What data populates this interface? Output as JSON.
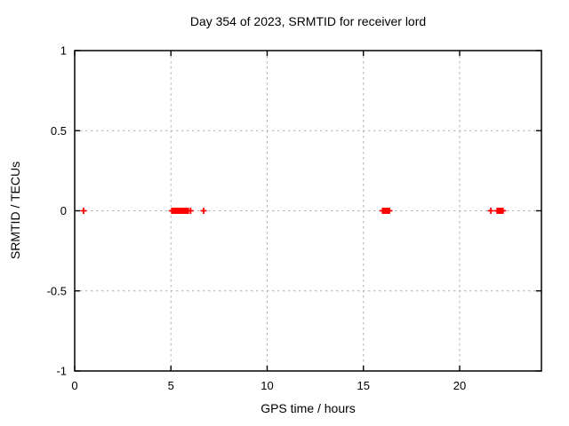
{
  "window": {
    "background": "#ffffff"
  },
  "chart_data": {
    "type": "scatter",
    "title": "Day 354 of 2023, SRMTID for receiver lord",
    "xlabel": "GPS time / hours",
    "ylabel": "SRMTID / TECUs",
    "xlim": [
      0,
      24.25
    ],
    "ylim": [
      -1,
      1
    ],
    "xticks": [
      0,
      5,
      10,
      15,
      20
    ],
    "yticks": [
      1,
      0.5,
      0,
      -0.5,
      -1
    ],
    "grid": true,
    "grid_color": "#b0b0b0",
    "border_color": "#000000",
    "legend": "none",
    "marker": {
      "shape": "plus",
      "color": "#ff0000",
      "size": 7,
      "stroke_width": 1.8
    },
    "series": [
      {
        "name": "SRMTID",
        "color": "#ff0000",
        "x": [
          0.46,
          5.05,
          5.1,
          5.15,
          5.2,
          5.25,
          5.3,
          5.35,
          5.4,
          5.45,
          5.5,
          5.55,
          5.6,
          5.65,
          5.7,
          5.75,
          5.8,
          5.85,
          5.9,
          6.02,
          6.7,
          16.0,
          16.05,
          16.1,
          16.15,
          16.2,
          16.25,
          16.3,
          16.35,
          21.62,
          21.95,
          22.0,
          22.05,
          22.1,
          22.15,
          22.2,
          22.25
        ],
        "y": [
          0,
          0,
          0,
          0,
          0,
          0,
          0,
          0,
          0,
          0,
          0,
          0,
          0,
          0,
          0,
          0,
          0,
          0,
          0,
          0,
          0,
          0,
          0,
          0,
          0,
          0,
          0,
          0,
          0,
          0,
          0,
          0,
          0,
          0,
          0,
          0,
          0
        ]
      }
    ]
  }
}
